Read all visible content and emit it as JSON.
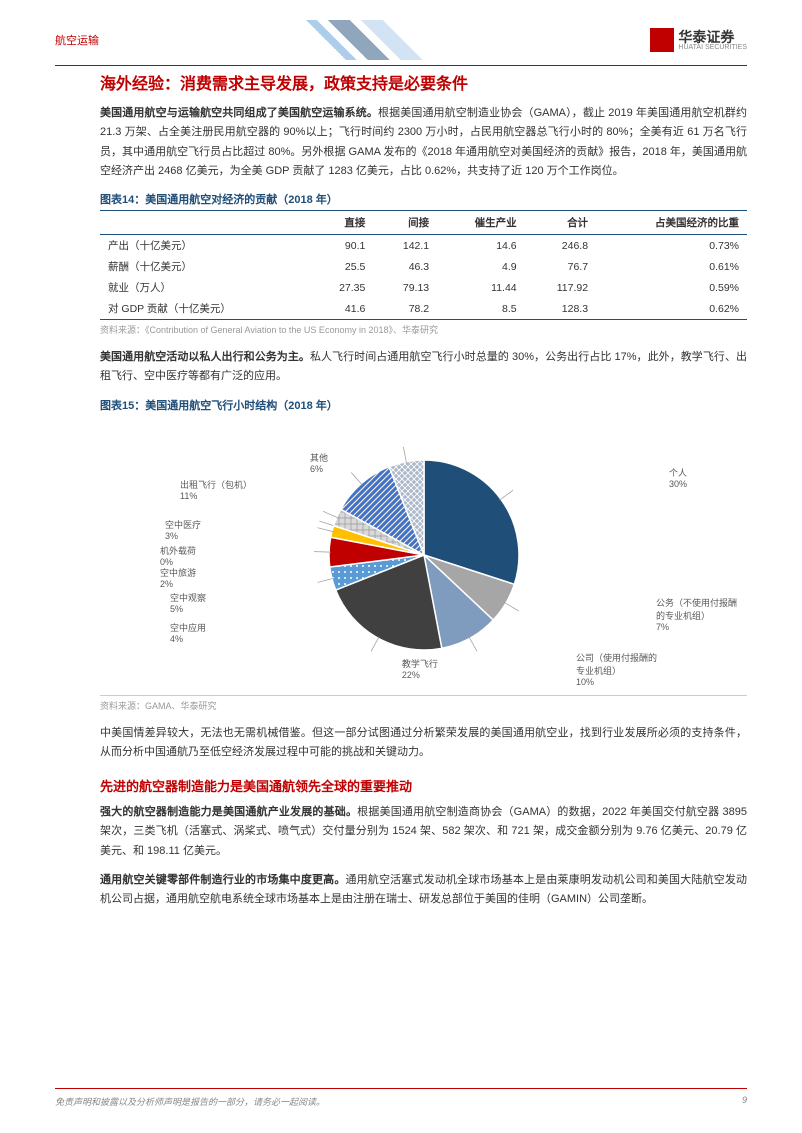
{
  "header": {
    "category": "航空运输",
    "company": "华泰证券",
    "company_en": "HUATAI SECURITIES"
  },
  "section1": {
    "title": "海外经验：消费需求主导发展，政策支持是必要条件",
    "p1_bold": "美国通用航空与运输航空共同组成了美国航空运输系统。",
    "p1_rest": "根据美国通用航空制造业协会（GAMA），截止 2019 年美国通用航空机群约 21.3 万架、占全美注册民用航空器的 90%以上；飞行时间约 2300 万小时，占民用航空器总飞行小时的 80%；全美有近 61 万名飞行员，其中通用航空飞行员占比超过 80%。另外根据 GAMA 发布的《2018 年通用航空对美国经济的贡献》报告，2018 年，美国通用航空经济产出 2468 亿美元，为全美 GDP 贡献了 1283 亿美元，占比 0.62%，共支持了近 120 万个工作岗位。"
  },
  "table14": {
    "title": "图表14：美国通用航空对经济的贡献（2018 年）",
    "columns": [
      "",
      "直接",
      "间接",
      "催生产业",
      "合计",
      "占美国经济的比重"
    ],
    "rows": [
      [
        "产出（十亿美元）",
        "90.1",
        "142.1",
        "14.6",
        "246.8",
        "0.73%"
      ],
      [
        "薪酬（十亿美元）",
        "25.5",
        "46.3",
        "4.9",
        "76.7",
        "0.61%"
      ],
      [
        "就业（万人）",
        "27.35",
        "79.13",
        "11.44",
        "117.92",
        "0.59%"
      ],
      [
        "对 GDP 贡献（十亿美元）",
        "41.6",
        "78.2",
        "8.5",
        "128.3",
        "0.62%"
      ]
    ],
    "source": "资料来源：《Contribution of General Aviation to the US Economy in 2018》、华泰研究"
  },
  "section2": {
    "p2_bold": "美国通用航空活动以私人出行和公务为主。",
    "p2_rest": "私人飞行时间占通用航空飞行小时总量的 30%，公务出行占比 17%，此外，教学飞行、出租飞行、空中医疗等都有广泛的应用。"
  },
  "chart15": {
    "title": "图表15：美国通用航空飞行小时结构（2018 年）",
    "type": "pie",
    "background_color": "#ffffff",
    "label_fontsize": 9,
    "label_color": "#595959",
    "slices": [
      {
        "label": "个人",
        "value": 30,
        "color": "#1f4e79",
        "pattern": "none"
      },
      {
        "label": "公务（不使用付报酬的专业机组）",
        "value": 7,
        "color": "#a6a6a6",
        "pattern": "none"
      },
      {
        "label": "公司（使用付报酬的专业机组）",
        "value": 10,
        "color": "#7f9bbd",
        "pattern": "none"
      },
      {
        "label": "教学飞行",
        "value": 22,
        "color": "#404040",
        "pattern": "none"
      },
      {
        "label": "空中应用",
        "value": 4,
        "color": "#5b9bd5",
        "pattern": "dots"
      },
      {
        "label": "空中观察",
        "value": 5,
        "color": "#c00000",
        "pattern": "none"
      },
      {
        "label": "空中旅游",
        "value": 2,
        "color": "#ffc000",
        "pattern": "none"
      },
      {
        "label": "机外载荷",
        "value": 0,
        "color": "#8faadc",
        "pattern": "hatch"
      },
      {
        "label": "空中医疗",
        "value": 3,
        "color": "#d9d9d9",
        "pattern": "grid"
      },
      {
        "label": "出租飞行（包机）",
        "value": 11,
        "color": "#4472c4",
        "pattern": "diag"
      },
      {
        "label": "其他",
        "value": 6,
        "color": "#adb9ca",
        "pattern": "cross"
      }
    ],
    "source": "资料来源：GAMA、华泰研究"
  },
  "section3": {
    "p3": "中美国情差异较大，无法也无需机械借鉴。但这一部分试图通过分析繁荣发展的美国通用航空业，找到行业发展所必须的支持条件，从而分析中国通航乃至低空经济发展过程中可能的挑战和关键动力。"
  },
  "section4": {
    "title": "先进的航空器制造能力是美国通航领先全球的重要推动",
    "p4_bold": "强大的航空器制造能力是美国通航产业发展的基础。",
    "p4_rest": "根据美国通用航空制造商协会（GAMA）的数据，2022 年美国交付航空器 3895 架次，三类飞机（活塞式、涡桨式、喷气式）交付量分别为 1524 架、582 架次、和 721 架，成交金额分别为 9.76 亿美元、20.79 亿美元、和 198.11 亿美元。",
    "p5_bold": "通用航空关键零部件制造行业的市场集中度更高。",
    "p5_rest": "通用航空活塞式发动机全球市场基本上是由莱康明发动机公司和美国大陆航空发动机公司占据，通用航空航电系统全球市场基本上是由注册在瑞士、研发总部位于美国的佳明（GAMIN）公司垄断。"
  },
  "footer": {
    "disclaimer": "免责声明和披露以及分析师声明是报告的一部分，请务必一起阅读。",
    "page": "9"
  }
}
